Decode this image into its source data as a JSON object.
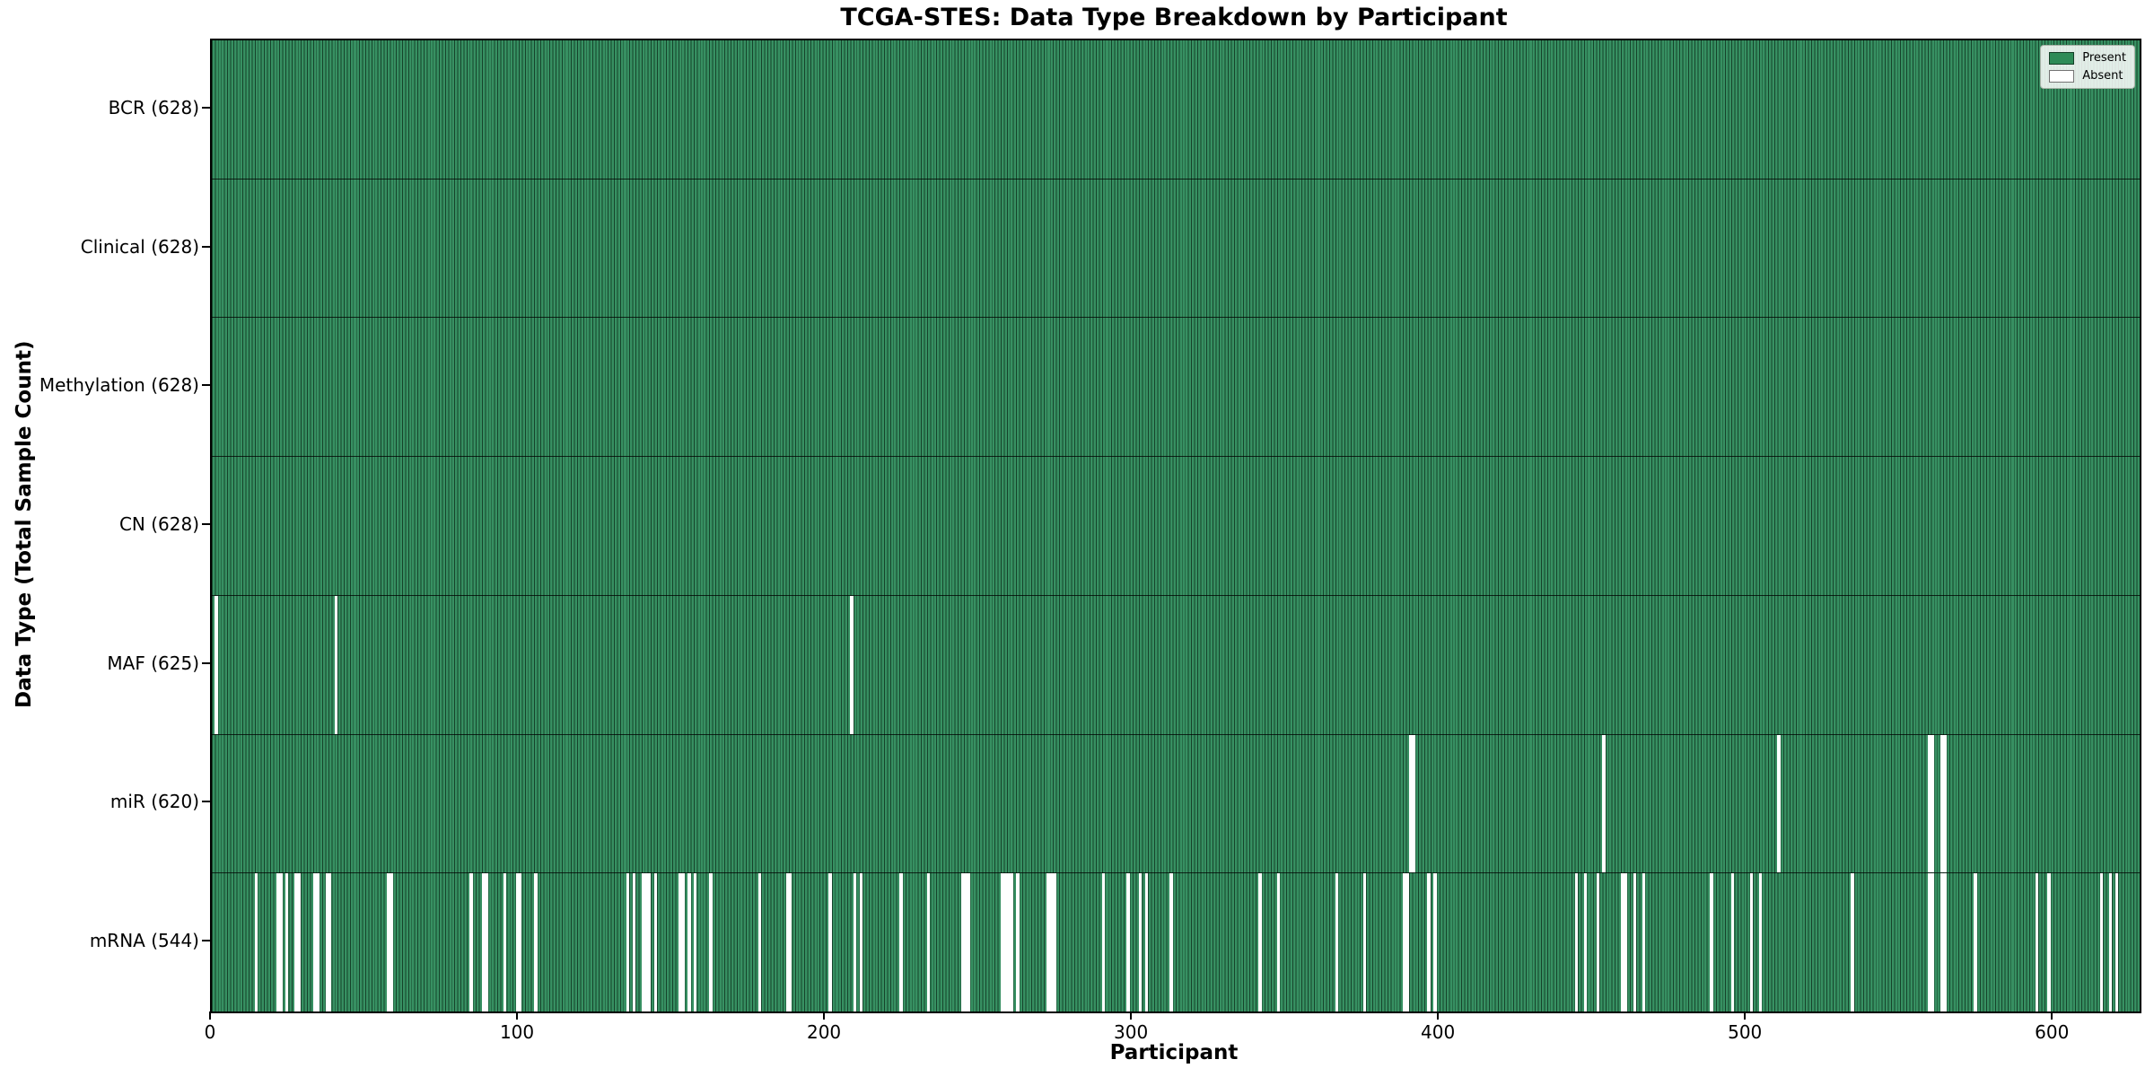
{
  "figure": {
    "title": "TCGA-STES: Data Type Breakdown by Participant",
    "xlabel": "Participant",
    "ylabel": "Data Type (Total Sample Count)"
  },
  "legend": {
    "items": [
      {
        "label": "Present",
        "swatch_color": "#2E8B57"
      },
      {
        "label": "Absent",
        "swatch_color": "#FFFFFF"
      }
    ]
  },
  "colors": {
    "present_fill": "#379062",
    "bar_edge": "#16432B",
    "absent_fill": "#FFFFFF",
    "axis": "#000000"
  },
  "chart_data": {
    "type": "heatmap",
    "title": "TCGA-STES: Data Type Breakdown by Participant",
    "xlabel": "Participant",
    "ylabel": "Data Type (Total Sample Count)",
    "x_ticks": [
      0,
      100,
      200,
      300,
      400,
      500,
      600
    ],
    "x_range": [
      0,
      628
    ],
    "n_participants": 628,
    "legend": [
      "Present",
      "Absent"
    ],
    "legend_position": "upper right",
    "grid": false,
    "rows": [
      {
        "label": "BCR (628)",
        "data_type": "BCR",
        "total_samples": 628,
        "absent_participants": []
      },
      {
        "label": "Clinical (628)",
        "data_type": "Clinical",
        "total_samples": 628,
        "absent_participants": []
      },
      {
        "label": "Methylation (628)",
        "data_type": "Methylation",
        "total_samples": 628,
        "absent_participants": []
      },
      {
        "label": "CN (628)",
        "data_type": "CN",
        "total_samples": 628,
        "absent_participants": []
      },
      {
        "label": "MAF (625)",
        "data_type": "MAF",
        "total_samples": 625,
        "absent_participants": [
          1,
          40,
          208
        ]
      },
      {
        "label": "miR (620)",
        "data_type": "miR",
        "total_samples": 620,
        "absent_participants": [
          390,
          391,
          453,
          510,
          559,
          560,
          563,
          564
        ]
      },
      {
        "label": "mRNA (544)",
        "data_type": "mRNA",
        "total_samples": 544,
        "absent_participants": [
          14,
          21,
          22,
          24,
          27,
          28,
          33,
          34,
          37,
          38,
          57,
          58,
          84,
          88,
          89,
          95,
          99,
          100,
          105,
          135,
          137,
          140,
          141,
          142,
          144,
          152,
          153,
          155,
          157,
          162,
          178,
          187,
          188,
          201,
          209,
          211,
          224,
          233,
          244,
          245,
          246,
          257,
          258,
          259,
          260,
          262,
          272,
          273,
          274,
          290,
          298,
          302,
          304,
          312,
          341,
          347,
          366,
          375,
          388,
          389,
          396,
          398,
          444,
          447,
          451,
          459,
          460,
          463,
          466,
          488,
          495,
          501,
          504,
          534,
          559,
          560,
          563,
          564,
          574,
          594,
          598,
          615,
          618,
          620
        ]
      }
    ]
  }
}
